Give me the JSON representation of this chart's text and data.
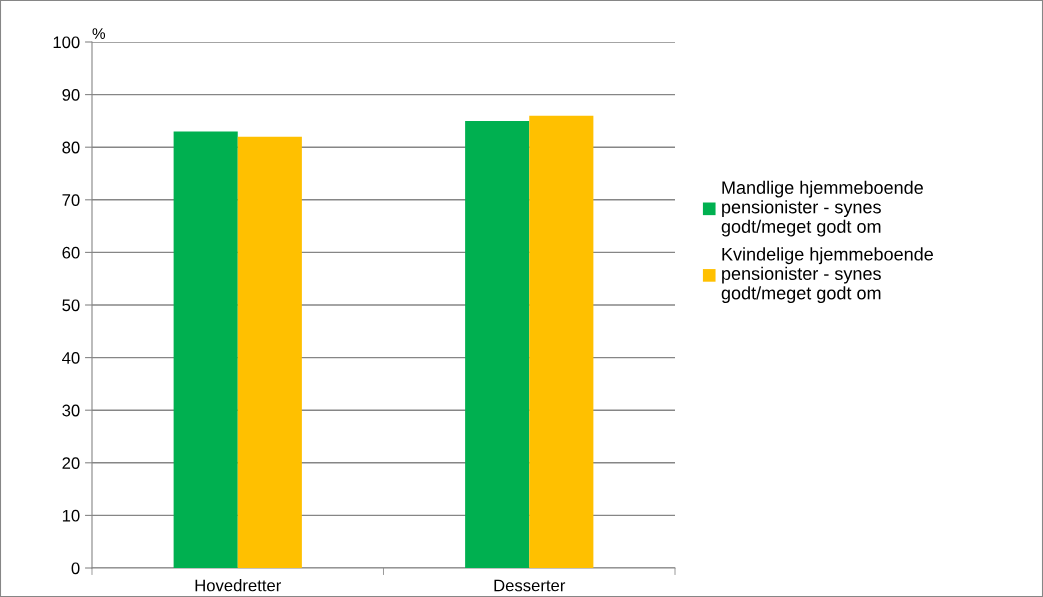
{
  "chart_data": {
    "type": "bar",
    "ylabel": "%",
    "categories": [
      "Hovedretter",
      "Desserter"
    ],
    "series": [
      {
        "name": "Mandlige hjemmeboende pensionister - synes godt/meget godt om",
        "color": "#00b050",
        "values": [
          83,
          85
        ]
      },
      {
        "name": "Kvindelige hjemmeboende pensionister - synes godt/meget godt om",
        "color": "#ffc000",
        "values": [
          82,
          86
        ]
      }
    ],
    "ylim": [
      0,
      100
    ],
    "yticks": [
      0,
      10,
      20,
      30,
      40,
      50,
      60,
      70,
      80,
      90,
      100
    ],
    "grid": "y",
    "legend": "right"
  }
}
